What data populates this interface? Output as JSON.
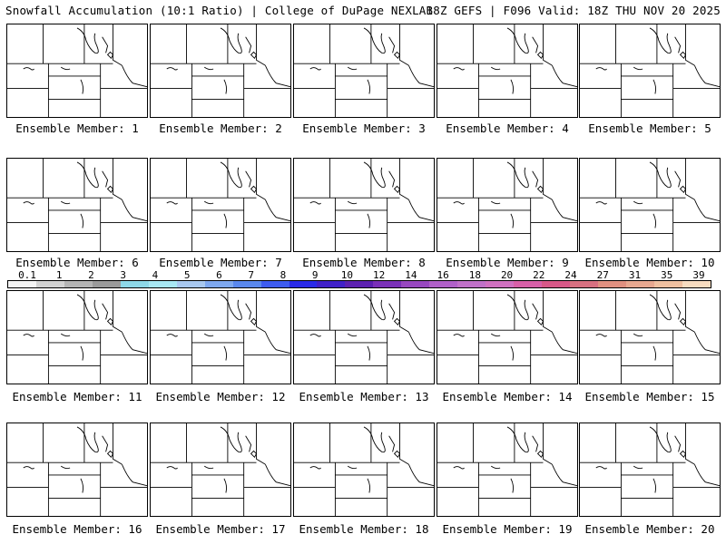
{
  "header": {
    "title": "Snowfall Accumulation (10:1 Ratio) | College of DuPage NEXLAB",
    "run_info": "18Z GEFS | F096 Valid: 18Z THU NOV 20 2025"
  },
  "colorbar": {
    "ticks": [
      "0.1",
      "1",
      "2",
      "3",
      "4",
      "5",
      "6",
      "7",
      "8",
      "9",
      "10",
      "12",
      "14",
      "16",
      "18",
      "20",
      "22",
      "24",
      "27",
      "31",
      "35",
      "39"
    ],
    "colors": [
      "#f4f4f4",
      "#d2d2d2",
      "#b4b4b4",
      "#9a9a9a",
      "#8ed8e8",
      "#a8e8f4",
      "#a8c8f0",
      "#7ea8f0",
      "#5a88ee",
      "#3e5cf0",
      "#2a2ae8",
      "#4020c8",
      "#5c20b0",
      "#7a30b8",
      "#9848c0",
      "#b060c8",
      "#c070c8",
      "#d070c0",
      "#d860a8",
      "#d85888",
      "#d87080",
      "#e09080",
      "#e8a890",
      "#f0c0a0",
      "#f8dcc0"
    ],
    "unit_label": ""
  },
  "members": [
    {
      "label": "Ensemble Member: 1"
    },
    {
      "label": "Ensemble Member: 2"
    },
    {
      "label": "Ensemble Member: 3"
    },
    {
      "label": "Ensemble Member: 4"
    },
    {
      "label": "Ensemble Member: 5"
    },
    {
      "label": "Ensemble Member: 6"
    },
    {
      "label": "Ensemble Member: 7"
    },
    {
      "label": "Ensemble Member: 8"
    },
    {
      "label": "Ensemble Member: 9"
    },
    {
      "label": "Ensemble Member: 10"
    },
    {
      "label": "Ensemble Member: 11"
    },
    {
      "label": "Ensemble Member: 12"
    },
    {
      "label": "Ensemble Member: 13"
    },
    {
      "label": "Ensemble Member: 14"
    },
    {
      "label": "Ensemble Member: 15"
    },
    {
      "label": "Ensemble Member: 16"
    },
    {
      "label": "Ensemble Member: 17"
    },
    {
      "label": "Ensemble Member: 18"
    },
    {
      "label": "Ensemble Member: 19"
    },
    {
      "label": "Ensemble Member: 20"
    }
  ]
}
